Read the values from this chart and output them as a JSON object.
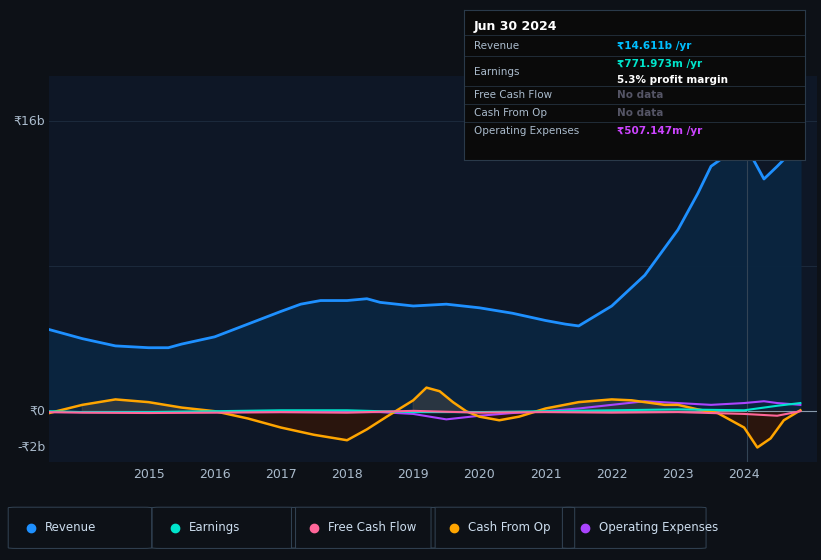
{
  "bg_color": "#0d1117",
  "chart_bg": "#0e1726",
  "grid_color": "#1e2d40",
  "ylabel_top": "₹16b",
  "ylabel_zero": "₹0",
  "ylabel_neg": "-₹2b",
  "ylim": [
    -2.8,
    18.5
  ],
  "xlim_start": 2013.5,
  "xlim_end": 2025.1,
  "xticks": [
    2015,
    2016,
    2017,
    2018,
    2019,
    2020,
    2021,
    2022,
    2023,
    2024
  ],
  "divider_x": 2024.05,
  "legend_items": [
    {
      "label": "Revenue",
      "color": "#1e90ff"
    },
    {
      "label": "Earnings",
      "color": "#00e5cc"
    },
    {
      "label": "Free Cash Flow",
      "color": "#ff6699"
    },
    {
      "label": "Cash From Op",
      "color": "#ffa500"
    },
    {
      "label": "Operating Expenses",
      "color": "#aa44ff"
    }
  ],
  "revenue_x": [
    2013.5,
    2014.0,
    2014.5,
    2015.0,
    2015.3,
    2015.5,
    2016.0,
    2016.5,
    2017.0,
    2017.3,
    2017.6,
    2018.0,
    2018.3,
    2018.5,
    2019.0,
    2019.5,
    2020.0,
    2020.5,
    2021.0,
    2021.3,
    2021.5,
    2022.0,
    2022.5,
    2023.0,
    2023.3,
    2023.5,
    2024.0,
    2024.3,
    2024.5,
    2024.85
  ],
  "revenue_y": [
    4.5,
    4.0,
    3.6,
    3.5,
    3.5,
    3.7,
    4.1,
    4.8,
    5.5,
    5.9,
    6.1,
    6.1,
    6.2,
    6.0,
    5.8,
    5.9,
    5.7,
    5.4,
    5.0,
    4.8,
    4.7,
    5.8,
    7.5,
    10.0,
    12.0,
    13.5,
    14.8,
    12.8,
    13.5,
    14.8
  ],
  "earnings_x": [
    2013.5,
    2014.0,
    2015.0,
    2016.0,
    2017.0,
    2018.0,
    2019.0,
    2020.0,
    2021.0,
    2022.0,
    2023.0,
    2024.0,
    2024.5,
    2024.85
  ],
  "earnings_y": [
    0.0,
    -0.05,
    -0.05,
    0.0,
    0.05,
    0.05,
    -0.05,
    -0.05,
    0.0,
    0.05,
    0.1,
    0.05,
    0.3,
    0.45
  ],
  "cashflow_x": [
    2013.5,
    2014.0,
    2015.0,
    2016.0,
    2017.0,
    2018.0,
    2019.0,
    2020.0,
    2021.0,
    2022.0,
    2023.0,
    2024.0,
    2024.5,
    2024.85
  ],
  "cashflow_y": [
    -0.05,
    -0.08,
    -0.1,
    -0.08,
    -0.05,
    -0.08,
    0.02,
    -0.08,
    -0.05,
    -0.08,
    -0.05,
    -0.15,
    -0.25,
    0.0
  ],
  "cashfromop_x": [
    2013.5,
    2014.0,
    2014.5,
    2015.0,
    2015.5,
    2016.0,
    2016.5,
    2017.0,
    2017.5,
    2018.0,
    2018.3,
    2018.6,
    2019.0,
    2019.2,
    2019.4,
    2019.6,
    2019.8,
    2020.0,
    2020.3,
    2020.6,
    2021.0,
    2021.5,
    2022.0,
    2022.3,
    2022.5,
    2022.8,
    2023.0,
    2023.3,
    2023.6,
    2024.0,
    2024.2,
    2024.4,
    2024.6,
    2024.85
  ],
  "cashfromop_y": [
    -0.1,
    0.35,
    0.65,
    0.5,
    0.2,
    0.0,
    -0.4,
    -0.9,
    -1.3,
    -1.6,
    -1.0,
    -0.3,
    0.6,
    1.3,
    1.1,
    0.5,
    0.0,
    -0.3,
    -0.5,
    -0.3,
    0.15,
    0.5,
    0.65,
    0.6,
    0.5,
    0.35,
    0.35,
    0.1,
    -0.1,
    -0.9,
    -2.0,
    -1.5,
    -0.5,
    0.05
  ],
  "opex_x": [
    2013.5,
    2014.5,
    2015.5,
    2016.5,
    2017.5,
    2018.5,
    2019.0,
    2019.5,
    2020.0,
    2020.5,
    2021.0,
    2021.5,
    2022.0,
    2022.5,
    2023.0,
    2023.5,
    2024.0,
    2024.3,
    2024.5,
    2024.85
  ],
  "opex_y": [
    -0.05,
    -0.05,
    -0.05,
    -0.05,
    -0.05,
    -0.05,
    -0.15,
    -0.45,
    -0.25,
    -0.1,
    0.0,
    0.15,
    0.35,
    0.55,
    0.45,
    0.35,
    0.45,
    0.55,
    0.45,
    0.35
  ],
  "info_box": {
    "title": "Jun 30 2024",
    "rows": [
      {
        "label": "Revenue",
        "value": "₹14.611b /yr",
        "value_color": "#00bfff",
        "extra": null
      },
      {
        "label": "Earnings",
        "value": "₹771.973m /yr",
        "value_color": "#00e5cc",
        "extra": "5.3% profit margin"
      },
      {
        "label": "Free Cash Flow",
        "value": "No data",
        "value_color": "#555566",
        "extra": null
      },
      {
        "label": "Cash From Op",
        "value": "No data",
        "value_color": "#555566",
        "extra": null
      },
      {
        "label": "Operating Expenses",
        "value": "₹507.147m /yr",
        "value_color": "#cc44ff",
        "extra": null
      }
    ]
  }
}
